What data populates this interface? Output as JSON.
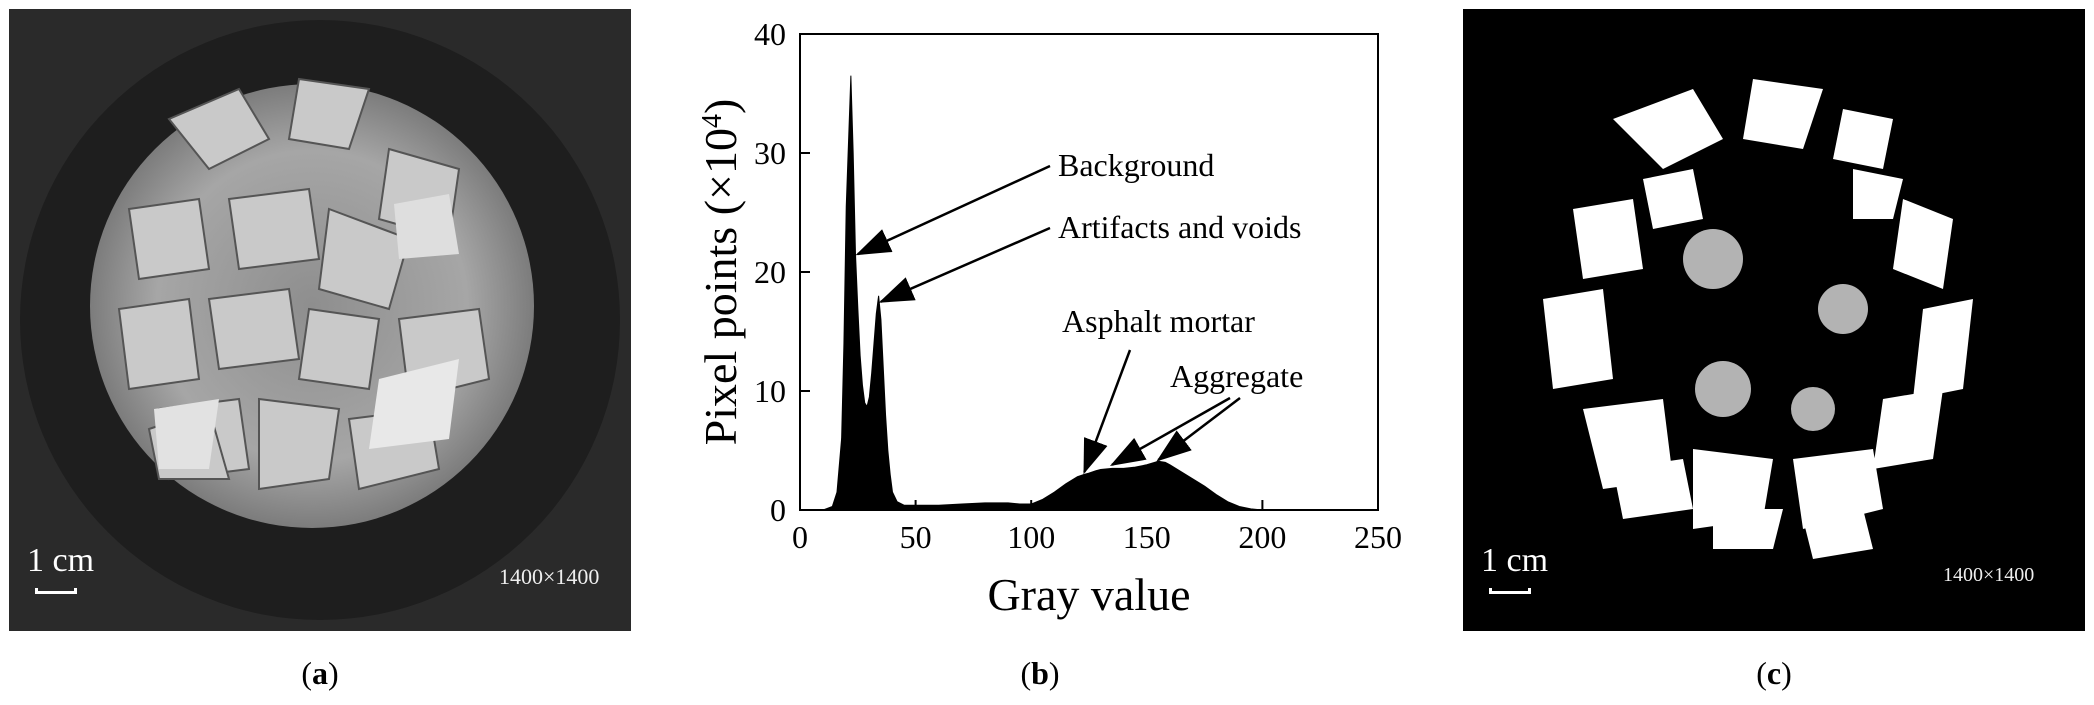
{
  "panels": {
    "a": {
      "caption_open": "(",
      "caption_letter": "a",
      "caption_close": ")",
      "scale_label": "1 cm",
      "resolution": "1400×1400"
    },
    "b": {
      "caption_open": "(",
      "caption_letter": "b",
      "caption_close": ")"
    },
    "c": {
      "caption_open": "(",
      "caption_letter": "c",
      "caption_close": ")",
      "scale_label": "1 cm",
      "resolution": "1400×1400"
    }
  },
  "colors": {
    "image_a_background": "#2a2a2a",
    "image_c_background": "#000000",
    "histogram_fill": "#000000"
  },
  "chart_data": {
    "type": "area",
    "title": "",
    "xlabel": "Gray value",
    "ylabel": "Pixel points (×10",
    "ylabel_sup": "4",
    "ylabel_close": ")",
    "xlim": [
      0,
      250
    ],
    "ylim": [
      0,
      40
    ],
    "xticks": [
      0,
      50,
      100,
      150,
      200,
      250
    ],
    "yticks": [
      0,
      10,
      20,
      30,
      40
    ],
    "grid": false,
    "x": [
      0,
      10,
      14,
      16,
      18,
      19,
      20,
      21,
      22,
      23,
      24,
      25,
      26,
      27,
      28,
      29,
      30,
      31,
      32,
      33,
      34,
      35,
      36,
      37,
      38,
      39,
      40,
      42,
      45,
      50,
      60,
      70,
      80,
      85,
      90,
      95,
      100,
      105,
      110,
      115,
      120,
      123,
      125,
      128,
      130,
      135,
      140,
      145,
      150,
      155,
      158,
      160,
      165,
      170,
      175,
      180,
      185,
      190,
      195,
      200,
      210,
      250
    ],
    "y": [
      0,
      0,
      0.3,
      1.5,
      6,
      14,
      25.5,
      31,
      36.5,
      30,
      21.5,
      17,
      13,
      10.5,
      9,
      8.7,
      9.5,
      11.5,
      14,
      16.5,
      18,
      16,
      12,
      8,
      5,
      3,
      1.5,
      0.7,
      0.4,
      0.4,
      0.4,
      0.5,
      0.6,
      0.6,
      0.6,
      0.5,
      0.5,
      0.9,
      1.5,
      2.2,
      2.8,
      3.0,
      3.1,
      3.3,
      3.4,
      3.5,
      3.5,
      3.6,
      3.8,
      4.1,
      4.0,
      3.8,
      3.2,
      2.6,
      2.0,
      1.3,
      0.7,
      0.3,
      0.1,
      0,
      0,
      0
    ],
    "annotations": [
      {
        "text": "Background",
        "target_x": 25,
        "target_y": 21.5
      },
      {
        "text": "Artifacts and voids",
        "target_x": 35,
        "target_y": 17.5
      },
      {
        "text": "Asphalt mortar",
        "target_x": 123,
        "target_y": 3.2
      },
      {
        "text": "Aggregate",
        "target_x": 135,
        "target_y": 3.8
      },
      {
        "text": "Aggregate",
        "target_x": 155,
        "target_y": 4.2
      }
    ]
  }
}
